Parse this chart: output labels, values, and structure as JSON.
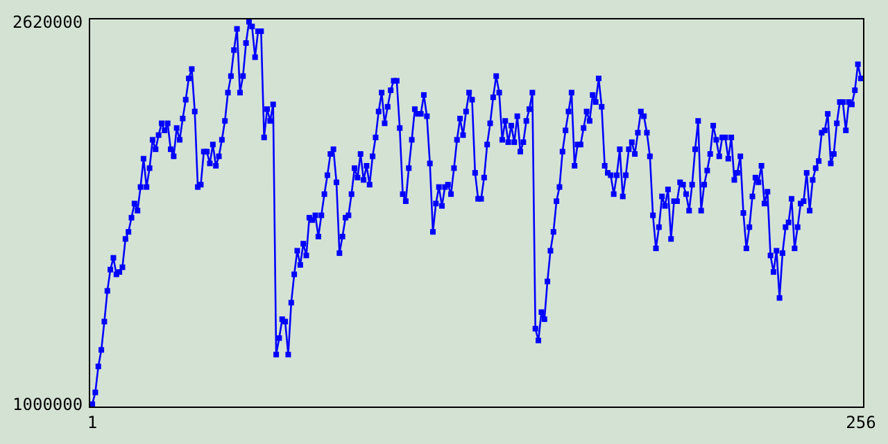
{
  "chart_data": {
    "type": "line",
    "marker": "square",
    "line_style": "solid",
    "grid": false,
    "x": [
      1,
      2,
      3,
      4,
      5,
      6,
      7,
      8,
      9,
      10,
      11,
      12,
      13,
      14,
      15,
      16,
      17,
      18,
      19,
      20,
      21,
      22,
      23,
      24,
      25,
      26,
      27,
      28,
      29,
      30,
      31,
      32,
      33,
      34,
      35,
      36,
      37,
      38,
      39,
      40,
      41,
      42,
      43,
      44,
      45,
      46,
      47,
      48,
      49,
      50,
      51,
      52,
      53,
      54,
      55,
      56,
      57,
      58,
      59,
      60,
      61,
      62,
      63,
      64,
      65,
      66,
      67,
      68,
      69,
      70,
      71,
      72,
      73,
      74,
      75,
      76,
      77,
      78,
      79,
      80,
      81,
      82,
      83,
      84,
      85,
      86,
      87,
      88,
      89,
      90,
      91,
      92,
      93,
      94,
      95,
      96,
      97,
      98,
      99,
      100,
      101,
      102,
      103,
      104,
      105,
      106,
      107,
      108,
      109,
      110,
      111,
      112,
      113,
      114,
      115,
      116,
      117,
      118,
      119,
      120,
      121,
      122,
      123,
      124,
      125,
      126,
      127,
      128,
      129,
      130,
      131,
      132,
      133,
      134,
      135,
      136,
      137,
      138,
      139,
      140,
      141,
      142,
      143,
      144,
      145,
      146,
      147,
      148,
      149,
      150,
      151,
      152,
      153,
      154,
      155,
      156,
      157,
      158,
      159,
      160,
      161,
      162,
      163,
      164,
      165,
      166,
      167,
      168,
      169,
      170,
      171,
      172,
      173,
      174,
      175,
      176,
      177,
      178,
      179,
      180,
      181,
      182,
      183,
      184,
      185,
      186,
      187,
      188,
      189,
      190,
      191,
      192,
      193,
      194,
      195,
      196,
      197,
      198,
      199,
      200,
      201,
      202,
      203,
      204,
      205,
      206,
      207,
      208,
      209,
      210,
      211,
      212,
      213,
      214,
      215,
      216,
      217,
      218,
      219,
      220,
      221,
      222,
      223,
      224,
      225,
      226,
      227,
      228,
      229,
      230,
      231,
      232,
      233,
      234,
      235,
      236,
      237,
      238,
      239,
      240,
      241,
      242,
      243,
      244,
      245,
      246,
      247,
      248,
      249,
      250,
      251,
      252,
      253,
      254,
      255,
      256
    ],
    "xlim": [
      0.3,
      256.7
    ],
    "xticks": [
      1,
      256
    ],
    "ylim": [
      990000,
      2630000
    ],
    "yticks": [
      1000000,
      2620000
    ],
    "series": [
      {
        "color": "#0000ff",
        "values": [
          1000000,
          1050000,
          1160000,
          1230000,
          1350000,
          1480000,
          1570000,
          1620000,
          1550000,
          1560000,
          1580000,
          1700000,
          1730000,
          1790000,
          1850000,
          1820000,
          1920000,
          2040000,
          1920000,
          2000000,
          2120000,
          2080000,
          2140000,
          2190000,
          2160000,
          2190000,
          2080000,
          2050000,
          2170000,
          2120000,
          2210000,
          2290000,
          2380000,
          2420000,
          2240000,
          1920000,
          1930000,
          2070000,
          2070000,
          2020000,
          2100000,
          2010000,
          2050000,
          2120000,
          2200000,
          2320000,
          2390000,
          2500000,
          2590000,
          2320000,
          2390000,
          2530000,
          2620000,
          2600000,
          2470000,
          2580000,
          2580000,
          2130000,
          2250000,
          2200000,
          2270000,
          1210000,
          1280000,
          1360000,
          1350000,
          1210000,
          1430000,
          1550000,
          1650000,
          1590000,
          1680000,
          1630000,
          1790000,
          1780000,
          1800000,
          1710000,
          1800000,
          1890000,
          1970000,
          2060000,
          2080000,
          1940000,
          1640000,
          1710000,
          1790000,
          1800000,
          1890000,
          2000000,
          1960000,
          2060000,
          1950000,
          2010000,
          1930000,
          2050000,
          2130000,
          2240000,
          2320000,
          2190000,
          2260000,
          2330000,
          2370000,
          2370000,
          2170000,
          1890000,
          1860000,
          2000000,
          2120000,
          2250000,
          2230000,
          2230000,
          2310000,
          2220000,
          2020000,
          1730000,
          1850000,
          1920000,
          1840000,
          1920000,
          1930000,
          1890000,
          2000000,
          2120000,
          2210000,
          2140000,
          2240000,
          2320000,
          2290000,
          1980000,
          1870000,
          1870000,
          1960000,
          2100000,
          2190000,
          2300000,
          2390000,
          2320000,
          2120000,
          2200000,
          2110000,
          2180000,
          2110000,
          2220000,
          2070000,
          2110000,
          2200000,
          2250000,
          2320000,
          1320000,
          1270000,
          1390000,
          1360000,
          1520000,
          1650000,
          1730000,
          1860000,
          1920000,
          2070000,
          2160000,
          2240000,
          2320000,
          2010000,
          2100000,
          2100000,
          2170000,
          2240000,
          2200000,
          2310000,
          2280000,
          2380000,
          2260000,
          2010000,
          1980000,
          1970000,
          1890000,
          1970000,
          2080000,
          1880000,
          1970000,
          2080000,
          2110000,
          2060000,
          2150000,
          2240000,
          2220000,
          2150000,
          2050000,
          1800000,
          1660000,
          1750000,
          1880000,
          1840000,
          1910000,
          1700000,
          1860000,
          1860000,
          1940000,
          1930000,
          1890000,
          1820000,
          1930000,
          2080000,
          2200000,
          1820000,
          1930000,
          1990000,
          2060000,
          2180000,
          2120000,
          2050000,
          2130000,
          2130000,
          2040000,
          2130000,
          1950000,
          1980000,
          2050000,
          1810000,
          1660000,
          1750000,
          1880000,
          1960000,
          1940000,
          2010000,
          1850000,
          1900000,
          1630000,
          1560000,
          1650000,
          1450000,
          1640000,
          1750000,
          1770000,
          1870000,
          1660000,
          1750000,
          1850000,
          1860000,
          1980000,
          1820000,
          1950000,
          2000000,
          2030000,
          2150000,
          2160000,
          2230000,
          2020000,
          2060000,
          2190000,
          2280000,
          2280000,
          2160000,
          2280000,
          2270000,
          2330000,
          2440000,
          2380000
        ]
      }
    ]
  }
}
